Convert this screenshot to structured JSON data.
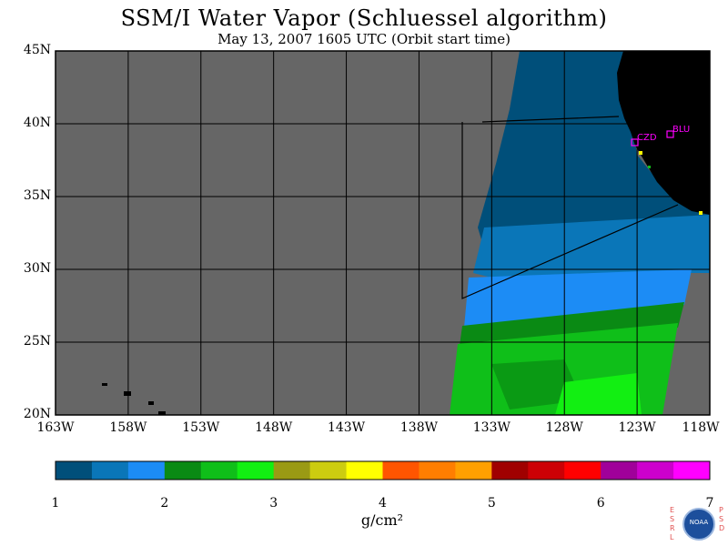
{
  "title": "SSM/I Water Vapor (Schluessel algorithm)",
  "subtitle": "May 13, 2007  1605 UTC  (Orbit start time)",
  "lat_labels": [
    "45N",
    "40N",
    "35N",
    "30N",
    "25N",
    "20N"
  ],
  "lon_labels": [
    "163W",
    "158W",
    "153W",
    "148W",
    "143W",
    "138W",
    "133W",
    "128W",
    "123W",
    "118W"
  ],
  "stations": [
    {
      "id": "CZD",
      "color": "#ff00ff"
    },
    {
      "id": "BLU",
      "color": "#ff00ff"
    }
  ],
  "colorbar": {
    "ticks": [
      "1",
      "2",
      "3",
      "4",
      "5",
      "6",
      "7"
    ],
    "unit": "g/cm²",
    "colors": [
      "#004f7a",
      "#0a76b8",
      "#1c8cf5",
      "#0a8a14",
      "#0fbf19",
      "#12ef12",
      "#9a9a14",
      "#cccc10",
      "#ffff00",
      "#ff5500",
      "#ff7e00",
      "#ffa000",
      "#a00000",
      "#cc0005",
      "#ff0000",
      "#a0009a",
      "#cc00cc",
      "#ff00ff"
    ]
  },
  "map_colors": {
    "no_data": "#666666",
    "land": "#000000",
    "frame": "#000000"
  },
  "logo": {
    "left_text": "ESRL",
    "right_text": "PSD",
    "center_text": "NOAA"
  },
  "chart_data": {
    "type": "heatmap",
    "title": "SSM/I Water Vapor (Schluessel algorithm)",
    "subtitle": "May 13, 2007  1605 UTC  (Orbit start time)",
    "x_range": [
      -163,
      -118
    ],
    "y_range": [
      20,
      45
    ],
    "x_ticks": [
      -163,
      -158,
      -153,
      -148,
      -143,
      -138,
      -133,
      -128,
      -123,
      -118
    ],
    "y_ticks": [
      20,
      25,
      30,
      35,
      40,
      45
    ],
    "value_range": [
      1,
      7
    ],
    "value_unit": "g/cm²"
  }
}
